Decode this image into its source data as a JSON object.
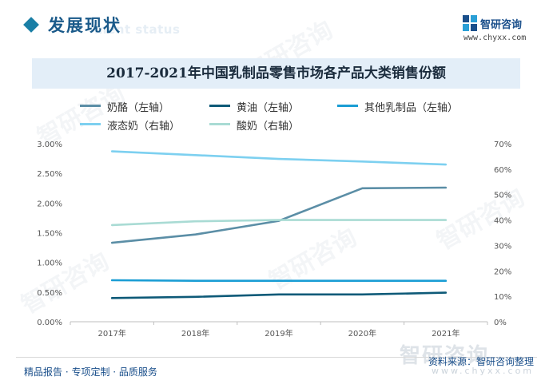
{
  "header": {
    "section_title": "发展现状",
    "section_title_en": "ment status",
    "brand_name": "智研咨询",
    "brand_url": "www.chyxx.com"
  },
  "colors": {
    "accent": "#1a7fa6",
    "banner_bg": "#e3eef8",
    "brand": "#1a4f8b"
  },
  "chart_data": {
    "type": "line",
    "title": "2017-2021年中国乳制品零售市场各产品大类销售份额",
    "categories": [
      "2017年",
      "2018年",
      "2019年",
      "2020年",
      "2021年"
    ],
    "y_left": {
      "ylim": [
        0,
        0.03
      ],
      "ticks": [
        "0.00%",
        "0.50%",
        "1.00%",
        "1.50%",
        "2.00%",
        "2.50%",
        "3.00%"
      ],
      "tick_values": [
        0,
        0.005,
        0.01,
        0.015,
        0.02,
        0.025,
        0.03
      ]
    },
    "y_right": {
      "ylim": [
        0,
        0.7
      ],
      "ticks": [
        "0%",
        "10%",
        "20%",
        "30%",
        "40%",
        "50%",
        "60%",
        "70%"
      ],
      "tick_values": [
        0,
        0.1,
        0.2,
        0.3,
        0.4,
        0.5,
        0.6,
        0.7
      ]
    },
    "series": [
      {
        "name": "奶酪（左轴）",
        "axis": "left",
        "color": "#5b8ea6",
        "values": [
          0.0133,
          0.0147,
          0.017,
          0.0225,
          0.0226
        ]
      },
      {
        "name": "黄油（左轴）",
        "axis": "left",
        "color": "#0e5a78",
        "values": [
          0.004,
          0.0042,
          0.0046,
          0.0046,
          0.0049
        ]
      },
      {
        "name": "其他乳制品（左轴）",
        "axis": "left",
        "color": "#1a9dd4",
        "values": [
          0.007,
          0.0069,
          0.0069,
          0.0069,
          0.0069
        ]
      },
      {
        "name": "液态奶（右轴）",
        "axis": "right",
        "color": "#7dd0f0",
        "values": [
          0.67,
          0.655,
          0.64,
          0.63,
          0.618
        ]
      },
      {
        "name": "酸奶（右轴）",
        "axis": "right",
        "color": "#a9dbd4",
        "values": [
          0.38,
          0.395,
          0.4,
          0.4,
          0.4
        ]
      }
    ],
    "grid": false,
    "legend_position": "top-left"
  },
  "footer": {
    "left_text": "精品报告 · 专项定制 · 品质服务",
    "source": "资料来源：智研咨询整理",
    "watermark": "智研咨询",
    "watermark_url": "www.chyxx.com"
  }
}
